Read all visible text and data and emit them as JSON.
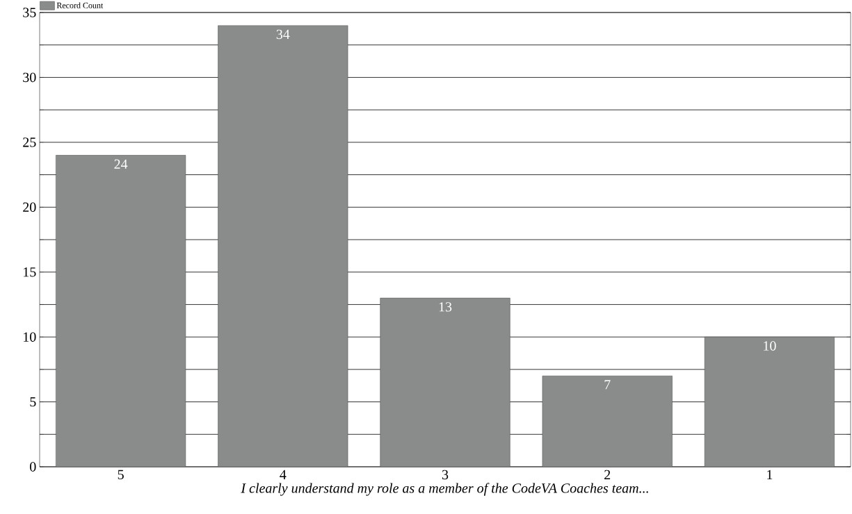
{
  "chart_data": {
    "type": "bar",
    "xlabel": "I clearly understand my role as a member of the CodeVA Coaches team...",
    "categories": [
      "5",
      "4",
      "3",
      "2",
      "1"
    ],
    "series": [
      {
        "name": "Record Count",
        "color": "#8a8c8c",
        "values": [
          24,
          34,
          13,
          7,
          10
        ]
      }
    ],
    "ylim": [
      0,
      35
    ],
    "yticks": [
      0,
      {
        "value": 2.5,
        "label": null
      },
      5,
      {
        "value": 7.5,
        "label": null
      },
      10,
      {
        "value": 12.5,
        "label": null
      },
      15,
      {
        "value": 17.5,
        "label": null
      },
      20,
      {
        "value": 22.5,
        "label": null
      },
      25,
      {
        "value": 27.5,
        "label": null
      },
      30,
      {
        "value": 32.5,
        "label": null
      },
      35
    ],
    "grid": "y",
    "legend": "top left",
    "data_labels": true
  }
}
